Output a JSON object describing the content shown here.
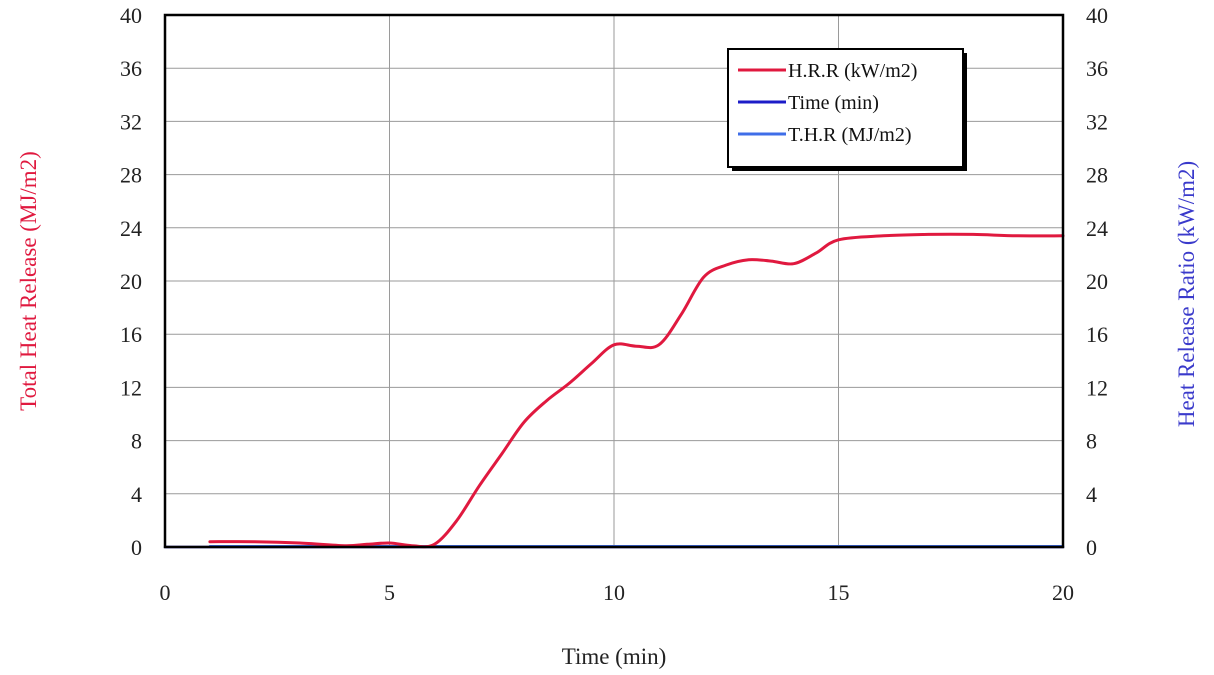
{
  "chart_data": {
    "type": "line",
    "xlabel": "Time  (min)",
    "ylabel_left": "Total Heat Release  (MJ/m2)",
    "ylabel_right": "Heat Release Ratio  (kW/m2)",
    "xlim": [
      0,
      20
    ],
    "ylim_left": [
      0,
      40
    ],
    "ylim_right": [
      0,
      40
    ],
    "x_ticks": [
      "0",
      "5",
      "10",
      "15",
      "20"
    ],
    "y_ticks_left": [
      "0",
      "4",
      "8",
      "12",
      "16",
      "20",
      "24",
      "28",
      "32",
      "36",
      "40"
    ],
    "y_ticks_right": [
      "0",
      "4",
      "8",
      "12",
      "16",
      "20",
      "24",
      "28",
      "32",
      "36",
      "40"
    ],
    "grid": true,
    "legend_position": "top-right",
    "series": [
      {
        "name": "H.R.R (kW/m2)",
        "color": "#e0193f",
        "x": [
          1,
          2,
          3,
          4,
          4.5,
          5,
          5.5,
          6,
          6.5,
          7,
          7.5,
          8,
          8.5,
          9,
          9.5,
          10,
          10.5,
          11,
          11.5,
          12,
          12.5,
          13,
          13.5,
          14,
          14.5,
          15,
          16,
          17,
          18,
          19,
          20
        ],
        "y": [
          0.4,
          0.4,
          0.3,
          0.1,
          0.2,
          0.3,
          0.1,
          0.2,
          2.0,
          4.6,
          7.0,
          9.4,
          11.0,
          12.3,
          13.8,
          15.2,
          15.1,
          15.2,
          17.5,
          20.3,
          21.2,
          21.6,
          21.5,
          21.3,
          22.1,
          23.1,
          23.4,
          23.5,
          23.5,
          23.4,
          23.4
        ]
      },
      {
        "name": "Time (min)",
        "color": "#1c1cc8",
        "x": [
          0,
          20
        ],
        "y": [
          0,
          0
        ]
      },
      {
        "name": "T.H.R (MJ/m2)",
        "color": "#3f6ee8",
        "x": [
          1,
          20
        ],
        "y": [
          0.05,
          0.05
        ]
      }
    ]
  },
  "colors": {
    "left_axis_title": "#e0193f",
    "right_axis_title": "#3a3acb",
    "grid": "#9a9a9a",
    "frame": "#000000"
  }
}
